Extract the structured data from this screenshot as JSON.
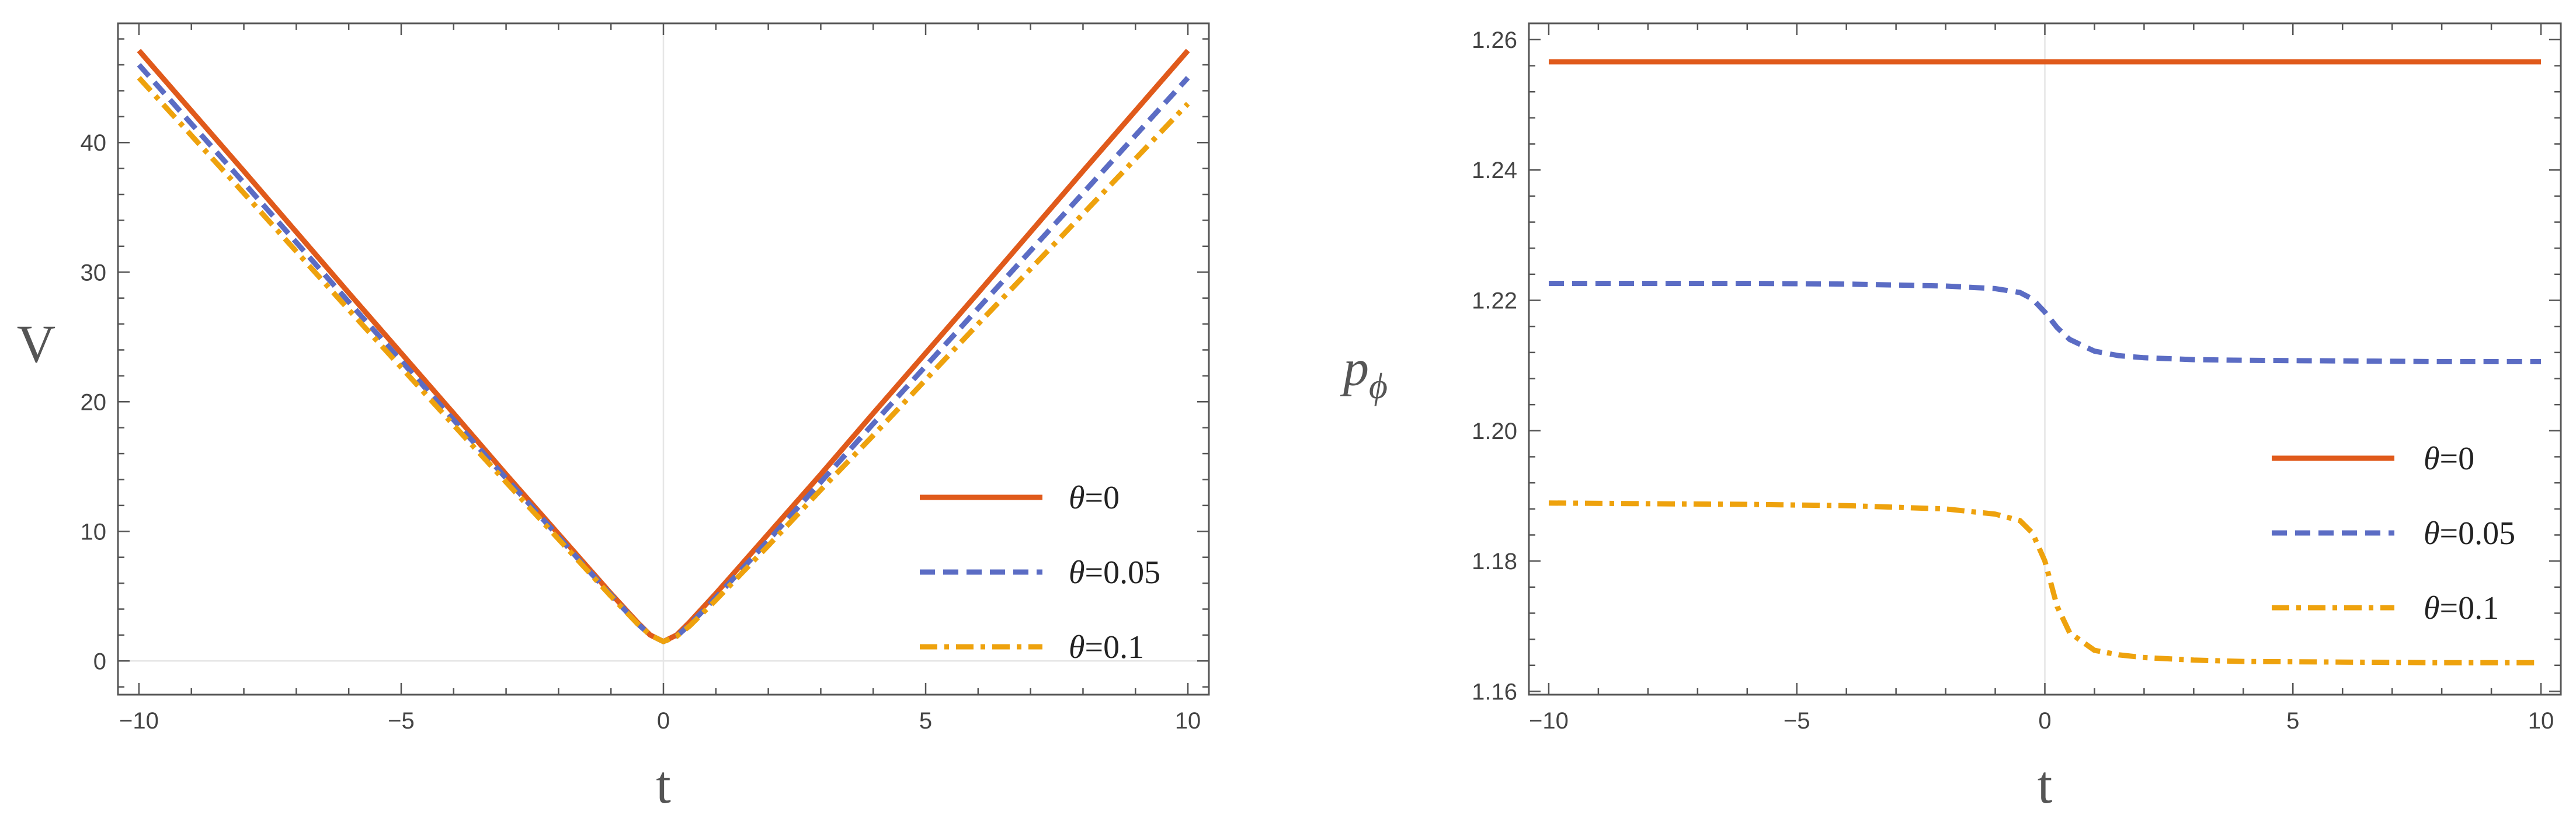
{
  "figure": {
    "panels": 2
  },
  "chart_data": [
    {
      "type": "line",
      "title": "",
      "xlabel": "t",
      "ylabel": "V",
      "xlim": [
        -10.4,
        10.4
      ],
      "ylim": [
        -2.6,
        49.2
      ],
      "x_ticks": [
        -10,
        -5,
        0,
        5,
        10
      ],
      "x_tick_labels": [
        "−10",
        "−5",
        "0",
        "5",
        "10"
      ],
      "y_ticks": [
        0,
        10,
        20,
        30,
        40
      ],
      "y_tick_labels": [
        "0",
        "10",
        "20",
        "30",
        "40"
      ],
      "grid": false,
      "legend_position": "bottom-right",
      "series": [
        {
          "name": "θ=0",
          "theta_symbol": "θ",
          "value_text": "=0",
          "color": "#e05a1b",
          "dash": "solid",
          "x": [
            -10,
            -8,
            -6,
            -4,
            -3,
            -2,
            -1.5,
            -1,
            -0.5,
            -0.25,
            0,
            0.25,
            0.5,
            1,
            1.5,
            2,
            3,
            4,
            6,
            8,
            10
          ],
          "values": [
            47.1,
            37.8,
            28.4,
            19.1,
            14.4,
            9.8,
            7.5,
            5.2,
            3.0,
            2.0,
            1.5,
            2.0,
            3.0,
            5.2,
            7.5,
            9.8,
            14.4,
            19.1,
            28.4,
            37.8,
            47.1
          ]
        },
        {
          "name": "θ=0.05",
          "theta_symbol": "θ",
          "value_text": "=0.05",
          "color": "#5b6cc4",
          "dash": "dashed",
          "x": [
            -10,
            -8,
            -6,
            -4,
            -3,
            -2,
            -1.5,
            -1,
            -0.5,
            -0.25,
            0,
            0.25,
            0.5,
            1,
            1.5,
            2,
            3,
            4,
            6,
            8,
            10
          ],
          "values": [
            46.0,
            36.9,
            27.7,
            18.6,
            14.1,
            9.6,
            7.3,
            5.1,
            2.9,
            2.0,
            1.5,
            1.9,
            2.8,
            4.9,
            7.1,
            9.3,
            13.8,
            18.3,
            27.2,
            36.1,
            45.0
          ]
        },
        {
          "name": "θ=0.1",
          "theta_symbol": "θ",
          "value_text": "=0.1",
          "color": "#eea20d",
          "dash": "dashdot",
          "x": [
            -10,
            -8,
            -6,
            -4,
            -3,
            -2,
            -1.5,
            -1,
            -0.5,
            -0.25,
            0,
            0.25,
            0.5,
            1,
            1.5,
            2,
            3,
            4,
            6,
            8,
            10
          ],
          "values": [
            45.0,
            36.1,
            27.1,
            18.2,
            13.8,
            9.4,
            7.2,
            5.0,
            2.9,
            2.0,
            1.5,
            1.9,
            2.7,
            4.7,
            6.8,
            8.9,
            13.2,
            17.4,
            26.0,
            34.5,
            43.0
          ]
        }
      ]
    },
    {
      "type": "line",
      "title": "",
      "xlabel": "t",
      "ylabel": "p",
      "ylabel_subscript": "ϕ",
      "xlim": [
        -10.4,
        10.4
      ],
      "ylim": [
        1.1595,
        1.2625
      ],
      "x_ticks": [
        -10,
        -5,
        0,
        5,
        10
      ],
      "x_tick_labels": [
        "−10",
        "−5",
        "0",
        "5",
        "10"
      ],
      "y_ticks": [
        1.16,
        1.18,
        1.2,
        1.22,
        1.24,
        1.26
      ],
      "y_tick_labels": [
        "1.16",
        "1.18",
        "1.20",
        "1.22",
        "1.24",
        "1.26"
      ],
      "grid": false,
      "legend_position": "bottom-right",
      "series": [
        {
          "name": "θ=0",
          "theta_symbol": "θ",
          "value_text": "=0",
          "color": "#e05a1b",
          "dash": "solid",
          "x": [
            -10,
            -5,
            0,
            5,
            10
          ],
          "values": [
            1.2566,
            1.2566,
            1.2566,
            1.2566,
            1.2566
          ]
        },
        {
          "name": "θ=0.05",
          "theta_symbol": "θ",
          "value_text": "=0.05",
          "color": "#5b6cc4",
          "dash": "dashed",
          "x": [
            -10,
            -8,
            -6,
            -4,
            -2,
            -1,
            -0.5,
            -0.25,
            0,
            0.25,
            0.5,
            1,
            1.5,
            2,
            3,
            4,
            6,
            8,
            10
          ],
          "values": [
            1.2226,
            1.2226,
            1.2226,
            1.2225,
            1.2222,
            1.2218,
            1.2212,
            1.2202,
            1.2182,
            1.2158,
            1.214,
            1.2122,
            1.2115,
            1.2112,
            1.2109,
            1.2108,
            1.2107,
            1.2106,
            1.2106
          ]
        },
        {
          "name": "θ=0.1",
          "theta_symbol": "θ",
          "value_text": "=0.1",
          "color": "#eea20d",
          "dash": "dashdot",
          "x": [
            -10,
            -8,
            -6,
            -4,
            -2,
            -1,
            -0.5,
            -0.25,
            0,
            0.25,
            0.5,
            1,
            1.5,
            2,
            3,
            4,
            6,
            8,
            10
          ],
          "values": [
            1.1889,
            1.1888,
            1.1887,
            1.1885,
            1.188,
            1.1872,
            1.1862,
            1.1843,
            1.18,
            1.173,
            1.169,
            1.1663,
            1.1656,
            1.1652,
            1.1648,
            1.1646,
            1.1645,
            1.1644,
            1.1644
          ]
        }
      ]
    }
  ]
}
